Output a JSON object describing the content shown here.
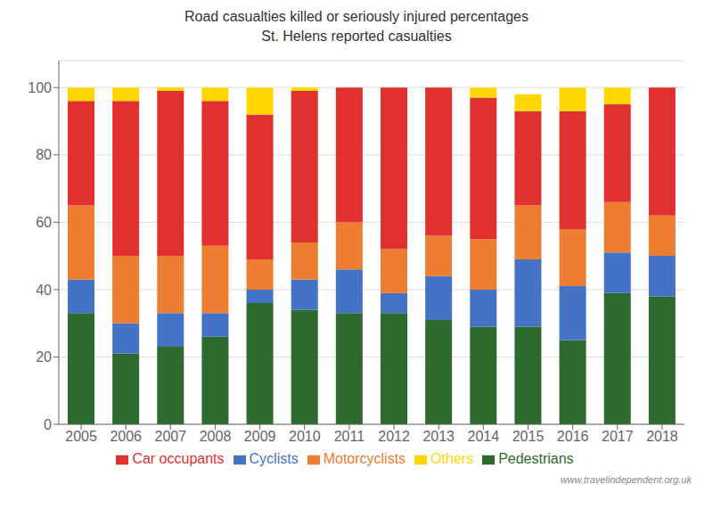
{
  "chart_data": {
    "type": "bar",
    "title": "Road casualties killed or seriously injured percentages",
    "subtitle": "St. Helens reported casualties",
    "annotation": "www.travelindependent.org.uk",
    "categories": [
      "2005",
      "2006",
      "2007",
      "2008",
      "2009",
      "2010",
      "2011",
      "2012",
      "2013",
      "2014",
      "2015",
      "2016",
      "2017",
      "2018"
    ],
    "series": [
      {
        "name": "Pedestrians",
        "color": "#2d6a2d",
        "values": [
          33,
          21,
          23,
          26,
          36,
          34,
          33,
          33,
          31,
          29,
          29,
          25,
          39,
          38
        ]
      },
      {
        "name": "Cyclists",
        "color": "#4472c4",
        "values": [
          10,
          9,
          10,
          7,
          4,
          9,
          13,
          6,
          13,
          11,
          20,
          16,
          12,
          12
        ]
      },
      {
        "name": "Motorcyclists",
        "color": "#ed7d31",
        "values": [
          22,
          20,
          17,
          20,
          9,
          11,
          14,
          13,
          12,
          15,
          16,
          17,
          15,
          12
        ]
      },
      {
        "name": "Car occupants",
        "color": "#e03030",
        "values": [
          31,
          46,
          49,
          43,
          43,
          45,
          40,
          48,
          44,
          42,
          28,
          35,
          29,
          38
        ]
      },
      {
        "name": "Others",
        "color": "#ffd700",
        "values": [
          4,
          4,
          1,
          4,
          8,
          1,
          0,
          0,
          0,
          3,
          5,
          7,
          5,
          0
        ]
      }
    ],
    "ylim": [
      0,
      108
    ],
    "yticks": [
      0,
      20,
      40,
      60,
      80,
      100
    ],
    "grid": true,
    "stacked": true,
    "legend": "bottom"
  }
}
